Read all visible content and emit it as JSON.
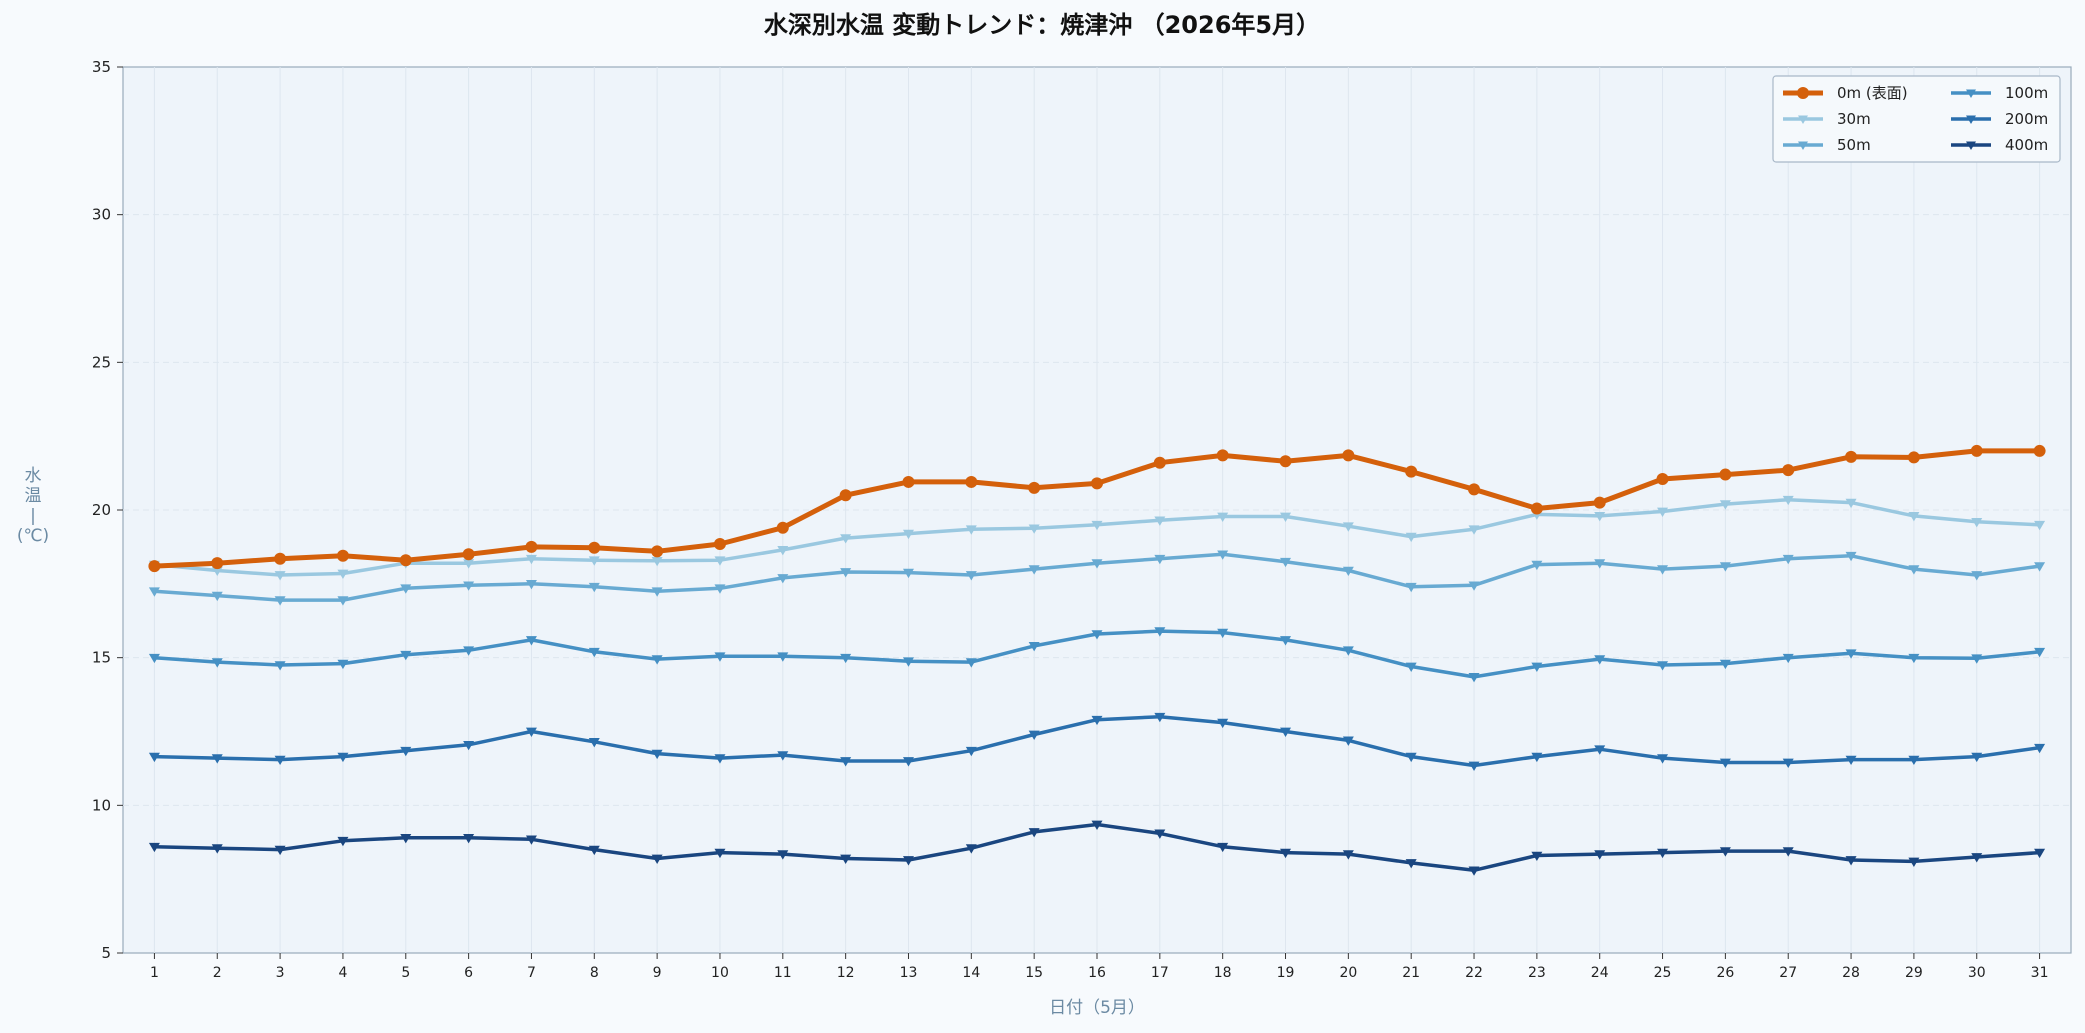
{
  "chart_data": {
    "type": "line",
    "title": "水深別水温 変動トレンド：焼津沖 （2026年5月）",
    "xlabel": "日付（5月）",
    "ylabel_chars": [
      "水",
      "温",
      "|",
      "(℃)"
    ],
    "x": [
      1,
      2,
      3,
      4,
      5,
      6,
      7,
      8,
      9,
      10,
      11,
      12,
      13,
      14,
      15,
      16,
      17,
      18,
      19,
      20,
      21,
      22,
      23,
      24,
      25,
      26,
      27,
      28,
      29,
      30,
      31
    ],
    "xlim": [
      0.5,
      31.5
    ],
    "ylim": [
      5,
      35
    ],
    "yticks": [
      5,
      10,
      15,
      20,
      25,
      30,
      35
    ],
    "grid": true,
    "legend_position": "top-right",
    "series": [
      {
        "name": "0m (表面)",
        "color": "#d4600b",
        "marker": "circle",
        "width": 5,
        "values": [
          18.1,
          18.2,
          18.35,
          18.45,
          18.3,
          18.5,
          18.75,
          18.72,
          18.6,
          18.85,
          19.4,
          20.5,
          20.95,
          20.95,
          20.75,
          20.9,
          21.6,
          21.85,
          21.65,
          21.85,
          21.3,
          20.7,
          20.05,
          20.25,
          21.05,
          21.2,
          21.35,
          21.8,
          21.78,
          22.0,
          22.0
        ]
      },
      {
        "name": "30m",
        "color": "#9ac8e0",
        "marker": "triangle-down",
        "width": 3.5,
        "values": [
          18.15,
          17.95,
          17.8,
          17.85,
          18.2,
          18.2,
          18.35,
          18.3,
          18.28,
          18.3,
          18.65,
          19.05,
          19.2,
          19.35,
          19.38,
          19.5,
          19.65,
          19.78,
          19.78,
          19.45,
          19.1,
          19.35,
          19.85,
          19.8,
          19.95,
          20.2,
          20.35,
          20.25,
          19.8,
          19.6,
          19.5
        ]
      },
      {
        "name": "50m",
        "color": "#68aad2",
        "marker": "triangle-down",
        "width": 3.5,
        "values": [
          17.25,
          17.1,
          16.95,
          16.95,
          17.35,
          17.45,
          17.5,
          17.4,
          17.25,
          17.35,
          17.7,
          17.9,
          17.88,
          17.8,
          18.0,
          18.2,
          18.35,
          18.5,
          18.25,
          17.95,
          17.4,
          17.45,
          18.15,
          18.2,
          18.0,
          18.1,
          18.35,
          18.45,
          18.0,
          17.8,
          18.1
        ]
      },
      {
        "name": "100m",
        "color": "#4590c4",
        "marker": "triangle-down",
        "width": 3.5,
        "values": [
          15.0,
          14.85,
          14.75,
          14.8,
          15.1,
          15.25,
          15.6,
          15.2,
          14.95,
          15.05,
          15.05,
          15.0,
          14.88,
          14.85,
          15.4,
          15.8,
          15.9,
          15.85,
          15.6,
          15.25,
          14.7,
          14.35,
          14.7,
          14.95,
          14.75,
          14.8,
          15.0,
          15.15,
          15.0,
          14.98,
          15.2
        ]
      },
      {
        "name": "200m",
        "color": "#2a6fad",
        "marker": "triangle-down",
        "width": 3.5,
        "values": [
          11.65,
          11.6,
          11.55,
          11.65,
          11.85,
          12.05,
          12.5,
          12.15,
          11.75,
          11.6,
          11.7,
          11.5,
          11.5,
          11.85,
          12.4,
          12.9,
          13.0,
          12.8,
          12.5,
          12.2,
          11.65,
          11.35,
          11.65,
          11.9,
          11.6,
          11.45,
          11.45,
          11.55,
          11.55,
          11.65,
          11.95
        ]
      },
      {
        "name": "400m",
        "color": "#1a4680",
        "marker": "triangle-down",
        "width": 3.5,
        "values": [
          8.6,
          8.55,
          8.5,
          8.8,
          8.9,
          8.9,
          8.85,
          8.5,
          8.2,
          8.4,
          8.35,
          8.2,
          8.15,
          8.55,
          9.1,
          9.35,
          9.05,
          8.6,
          8.4,
          8.35,
          8.05,
          7.8,
          8.3,
          8.35,
          8.4,
          8.45,
          8.45,
          8.15,
          8.1,
          8.25,
          8.4
        ]
      }
    ]
  },
  "colors": {
    "background": "#f7fafd",
    "plot_background": "#eef4fa",
    "grid": "#dde6ef",
    "axis": "#99aabb"
  }
}
